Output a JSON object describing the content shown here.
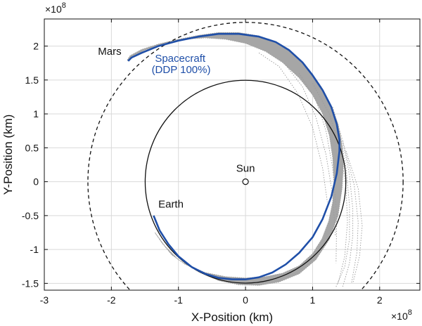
{
  "chart_data": {
    "type": "line",
    "title": "",
    "xlabel": "X-Position (km)",
    "ylabel": "Y-Position (km)",
    "x_exponent_label": "×10",
    "y_exponent_label": "×10",
    "exponent": "8",
    "xlim": [
      -3.0,
      2.6
    ],
    "ylim": [
      -1.6,
      2.4
    ],
    "x_ticks": [
      -3,
      -2,
      -1,
      0,
      1,
      2
    ],
    "y_ticks": [
      -1.5,
      -1,
      -0.5,
      0,
      0.5,
      1,
      1.5,
      2
    ],
    "x_tick_labels": [
      "-3",
      "-2",
      "-1",
      "0",
      "1",
      "2"
    ],
    "y_tick_labels": [
      "-1.5",
      "-1",
      "-0.5",
      "0",
      "0.5",
      "1",
      "1.5",
      "2"
    ],
    "grid": true,
    "bodies": {
      "sun": {
        "label": "Sun",
        "x": 0,
        "y": 0
      },
      "earth_orbit": {
        "label": "Earth",
        "radius": 1.496,
        "style": "solid"
      },
      "mars_orbit": {
        "label": "Mars",
        "radius": 2.35,
        "style": "dashed"
      }
    },
    "series": [
      {
        "name": "Spacecraft\n(DDP 100%)",
        "label_line1": "Spacecraft",
        "label_line2": "(DDP 100%)",
        "color": "#1f4fa8",
        "x": [
          -1.37,
          -1.28,
          -1.15,
          -1.0,
          -0.8,
          -0.6,
          -0.4,
          -0.2,
          0.0,
          0.2,
          0.4,
          0.6,
          0.8,
          1.0,
          1.15,
          1.28,
          1.36,
          1.4,
          1.4,
          1.36,
          1.28,
          1.15,
          1.0,
          0.85,
          0.65,
          0.45,
          0.2,
          -0.1,
          -0.4,
          -0.7,
          -1.0,
          -1.3,
          -1.55,
          -1.7,
          -1.75
        ],
        "y": [
          -0.5,
          -0.72,
          -0.92,
          -1.1,
          -1.26,
          -1.36,
          -1.42,
          -1.44,
          -1.44,
          -1.41,
          -1.34,
          -1.22,
          -1.05,
          -0.82,
          -0.55,
          -0.22,
          0.12,
          0.45,
          0.62,
          0.85,
          1.1,
          1.35,
          1.57,
          1.76,
          1.94,
          2.06,
          2.14,
          2.18,
          2.18,
          2.14,
          2.08,
          2.0,
          1.9,
          1.83,
          1.78
        ]
      }
    ],
    "dispersion": {
      "color": "#9a9a9a",
      "fill": "#a6a6a6",
      "outer_x": [
        -1.35,
        -1.2,
        -1.0,
        -0.7,
        -0.4,
        -0.1,
        0.2,
        0.5,
        0.8,
        1.05,
        1.25,
        1.38,
        1.44,
        1.46,
        1.44,
        1.38,
        1.28,
        1.13,
        0.95,
        0.75,
        0.5,
        0.2,
        -0.1,
        -0.4,
        -0.7,
        -1.0,
        -1.3,
        -1.55,
        -1.72,
        -1.76
      ],
      "outer_y": [
        -0.75,
        -0.95,
        -1.15,
        -1.33,
        -1.46,
        -1.52,
        -1.53,
        -1.48,
        -1.36,
        -1.15,
        -0.85,
        -0.5,
        -0.1,
        0.25,
        0.55,
        0.85,
        1.12,
        1.4,
        1.65,
        1.86,
        2.03,
        2.15,
        2.2,
        2.2,
        2.16,
        2.1,
        2.03,
        1.95,
        1.86,
        1.8
      ],
      "inner_x": [
        -1.76,
        -1.7,
        -1.5,
        -1.2,
        -0.9,
        -0.6,
        -0.3,
        0.0,
        0.3,
        0.55,
        0.8,
        1.0,
        1.15,
        1.25,
        1.3,
        1.32,
        1.3,
        1.24,
        1.14,
        1.0,
        0.8,
        0.55,
        0.3,
        0.0,
        -0.3,
        -0.6,
        -0.9,
        -1.1,
        -1.25,
        -1.35
      ],
      "inner_y": [
        1.78,
        1.84,
        1.94,
        2.04,
        2.1,
        2.12,
        2.1,
        2.04,
        1.92,
        1.76,
        1.53,
        1.28,
        1.0,
        0.68,
        0.35,
        0.0,
        -0.3,
        -0.58,
        -0.84,
        -1.06,
        -1.24,
        -1.35,
        -1.4,
        -1.42,
        -1.4,
        -1.34,
        -1.22,
        -1.08,
        -0.9,
        -0.75
      ],
      "stray_paths": [
        {
          "x": [
            1.3,
            1.45,
            1.55,
            1.6,
            1.6,
            1.55,
            1.45
          ],
          "y": [
            1.1,
            0.6,
            0.1,
            -0.4,
            -0.8,
            -1.2,
            -1.55
          ]
        },
        {
          "x": [
            1.2,
            1.4,
            1.5,
            1.55,
            1.55,
            1.48,
            1.35
          ],
          "y": [
            1.25,
            0.75,
            0.2,
            -0.35,
            -0.85,
            -1.25,
            -1.55
          ]
        },
        {
          "x": [
            1.0,
            1.25,
            1.42,
            1.5,
            1.52,
            1.48,
            1.38
          ],
          "y": [
            1.45,
            1.0,
            0.45,
            -0.1,
            -0.6,
            -1.1,
            -1.5
          ]
        },
        {
          "x": [
            0.8,
            1.05,
            1.2,
            1.3,
            1.36,
            1.35
          ],
          "y": [
            1.6,
            1.2,
            0.75,
            0.2,
            -0.5,
            -1.2
          ]
        },
        {
          "x": [
            0.6,
            0.85,
            1.05,
            1.2,
            1.3,
            1.34
          ],
          "y": [
            1.72,
            1.4,
            0.95,
            0.4,
            -0.2,
            -0.8
          ]
        },
        {
          "x": [
            0.2,
            0.5,
            0.78,
            1.0,
            1.15,
            1.22
          ],
          "y": [
            1.9,
            1.7,
            1.3,
            0.8,
            0.2,
            -0.3
          ]
        },
        {
          "x": [
            1.45,
            1.62,
            1.68,
            1.66,
            1.58
          ],
          "y": [
            0.6,
            -0.05,
            -0.6,
            -1.05,
            -1.5
          ]
        },
        {
          "x": [
            1.5,
            1.68,
            1.74,
            1.7,
            1.6
          ],
          "y": [
            0.45,
            -0.1,
            -0.65,
            -1.1,
            -1.5
          ]
        }
      ]
    }
  }
}
